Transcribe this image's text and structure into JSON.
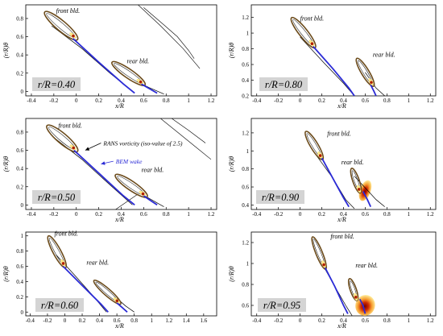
{
  "figure": {
    "labels": {
      "front": "front bld.",
      "rear": "rear bld.",
      "rans": "RANS vorticity (iso-value of 2.5)",
      "bem": "BEM wake"
    },
    "ylabel": "(r/R)θ",
    "xlabel": "x/R",
    "colors": {
      "bem_wake": "#2b2bd6",
      "rans_contour": "#000000",
      "blade_outline": "#6b4a1a",
      "vorticity_low": "#ffe98a",
      "vorticity_high": "#b01e00",
      "label_box": "#d4d4d4"
    }
  },
  "chart_data": [
    {
      "type": "contour",
      "panel": "r/R=0.40",
      "xlabel": "x/R",
      "ylabel": "(r/R)θ",
      "xlim": [
        -0.45,
        1.25
      ],
      "ylim": [
        -0.05,
        0.95
      ],
      "xticks": [
        "-0.4",
        "-0.2",
        "0",
        "0.2",
        "0.4",
        "0.6",
        "0.8",
        "1",
        "1.2"
      ],
      "yticks": [
        "0",
        "0.2",
        "0.4",
        "0.6",
        "0.8"
      ],
      "front": {
        "le": [
          -0.27,
          0.86
        ],
        "te": [
          0.0,
          0.58
        ],
        "w": 0.045
      },
      "rear": {
        "le": [
          0.33,
          0.31
        ],
        "te": [
          0.6,
          0.08
        ],
        "w": 0.04
      },
      "wakes": [
        [
          [
            -0.03,
            0.58
          ],
          [
            0.2,
            0.32
          ],
          [
            0.42,
            0.08
          ],
          [
            0.52,
            -0.02
          ]
        ],
        [
          [
            0.58,
            0.08
          ],
          [
            0.65,
            0.03
          ],
          [
            0.72,
            -0.02
          ]
        ]
      ],
      "rans": [
        [
          [
            -0.22,
            0.72
          ],
          [
            0.05,
            0.47
          ],
          [
            0.3,
            0.2
          ],
          [
            0.5,
            0.0
          ]
        ],
        [
          [
            0.55,
            0.1
          ],
          [
            0.65,
            0.04
          ],
          [
            0.78,
            -0.03
          ]
        ]
      ],
      "stray": [
        [
          [
            0.55,
            0.95
          ],
          [
            0.75,
            0.72
          ],
          [
            0.95,
            0.47
          ],
          [
            1.1,
            0.25
          ]
        ],
        [
          [
            0.6,
            0.92
          ],
          [
            0.78,
            0.73
          ],
          [
            0.9,
            0.6
          ],
          [
            1.0,
            0.45
          ],
          [
            1.05,
            0.36
          ]
        ]
      ],
      "text": [
        {
          "key": "front",
          "x": -0.18,
          "y": 0.86
        },
        {
          "key": "rear",
          "x": 0.45,
          "y": 0.31
        }
      ]
    },
    {
      "type": "contour",
      "panel": "r/R=0.80",
      "xlabel": "x/R",
      "ylabel": "(r/R)θ",
      "xlim": [
        -0.45,
        1.25
      ],
      "ylim": [
        0.2,
        1.36
      ],
      "xticks": [
        "-0.4",
        "-0.2",
        "0",
        "0.2",
        "0.4",
        "0.6",
        "0.8",
        "1",
        "1.2"
      ],
      "yticks": [
        "0.2",
        "0.4",
        "0.6",
        "0.8",
        "1",
        "1.2"
      ],
      "front": {
        "le": [
          -0.07,
          1.18
        ],
        "te": [
          0.13,
          0.83
        ],
        "w": 0.04
      },
      "rear": {
        "le": [
          0.53,
          0.66
        ],
        "te": [
          0.67,
          0.34
        ],
        "w": 0.035
      },
      "wakes": [
        [
          [
            0.12,
            0.83
          ],
          [
            0.3,
            0.55
          ],
          [
            0.45,
            0.3
          ],
          [
            0.5,
            0.2
          ]
        ],
        [
          [
            0.65,
            0.34
          ],
          [
            0.68,
            0.26
          ],
          [
            0.7,
            0.2
          ]
        ]
      ],
      "rans": [
        [
          [
            0.0,
            0.95
          ],
          [
            0.22,
            0.62
          ],
          [
            0.4,
            0.36
          ],
          [
            0.5,
            0.2
          ]
        ],
        [
          [
            0.6,
            0.5
          ],
          [
            0.7,
            0.3
          ],
          [
            0.78,
            0.2
          ]
        ]
      ],
      "stray": [],
      "text": [
        {
          "key": "front",
          "x": 0.0,
          "y": 1.16
        },
        {
          "key": "rear",
          "x": 0.67,
          "y": 0.7
        }
      ]
    },
    {
      "type": "contour",
      "panel": "r/R=0.50",
      "xlabel": "x/R",
      "ylabel": "(r/R)θ",
      "xlim": [
        -0.45,
        1.25
      ],
      "ylim": [
        -0.05,
        0.95
      ],
      "xticks": [
        "-0.4",
        "-0.2",
        "0",
        "0.2",
        "0.4",
        "0.6",
        "0.8",
        "1",
        "1.2"
      ],
      "yticks": [
        "0",
        "0.2",
        "0.4",
        "0.6",
        "0.8"
      ],
      "front": {
        "le": [
          -0.25,
          0.86
        ],
        "te": [
          0.0,
          0.6
        ],
        "w": 0.045
      },
      "rear": {
        "le": [
          0.36,
          0.32
        ],
        "te": [
          0.62,
          0.1
        ],
        "w": 0.04
      },
      "wakes": [
        [
          [
            -0.02,
            0.6
          ],
          [
            0.2,
            0.35
          ],
          [
            0.42,
            0.1
          ],
          [
            0.52,
            0.0
          ]
        ],
        [
          [
            0.6,
            0.1
          ],
          [
            0.66,
            0.05
          ],
          [
            0.72,
            0.0
          ]
        ]
      ],
      "rans": [
        [
          [
            -0.2,
            0.74
          ],
          [
            0.05,
            0.5
          ],
          [
            0.3,
            0.22
          ],
          [
            0.5,
            0.0
          ]
        ],
        [
          [
            0.58,
            0.12
          ],
          [
            0.68,
            0.05
          ],
          [
            0.78,
            -0.02
          ]
        ]
      ],
      "stray": [
        [
          [
            0.75,
            0.95
          ],
          [
            0.9,
            0.8
          ],
          [
            1.05,
            0.65
          ],
          [
            1.2,
            0.5
          ]
        ],
        [
          [
            0.85,
            0.95
          ],
          [
            1.0,
            0.82
          ],
          [
            1.15,
            0.68
          ]
        ],
        [
          [
            0.35,
            -0.05
          ],
          [
            0.55,
            0.12
          ]
        ]
      ],
      "arrows": [
        {
          "from": [
            0.22,
            0.68
          ],
          "to": [
            0.08,
            0.6
          ],
          "key": "rans",
          "color": "#000000"
        },
        {
          "from": [
            0.33,
            0.48
          ],
          "to": [
            0.22,
            0.45
          ],
          "key": "bem",
          "color": "#2b2bd6"
        }
      ],
      "text": [
        {
          "key": "front",
          "x": -0.16,
          "y": 0.85
        },
        {
          "key": "rear",
          "x": 0.58,
          "y": 0.36
        }
      ]
    },
    {
      "type": "contour",
      "panel": "r/R=0.90",
      "xlabel": "x/R",
      "ylabel": "(r/R)θ",
      "xlim": [
        -0.45,
        1.25
      ],
      "ylim": [
        0.35,
        1.36
      ],
      "xticks": [
        "-0.4",
        "-0.2",
        "0",
        "0.2",
        "0.4",
        "0.6",
        "0.8",
        "1",
        "1.2"
      ],
      "yticks": [
        "0.4",
        "0.6",
        "0.8",
        "1",
        "1.2"
      ],
      "front": {
        "le": [
          0.06,
          1.2
        ],
        "te": [
          0.2,
          0.92
        ],
        "w": 0.035
      },
      "rear": {
        "le": [
          0.48,
          0.79
        ],
        "te": [
          0.55,
          0.55
        ],
        "w": 0.03
      },
      "wakes": [
        [
          [
            0.2,
            0.92
          ],
          [
            0.3,
            0.7
          ],
          [
            0.4,
            0.48
          ],
          [
            0.45,
            0.38
          ]
        ],
        [
          [
            0.58,
            0.55
          ],
          [
            0.62,
            0.46
          ],
          [
            0.65,
            0.38
          ]
        ]
      ],
      "rans": [
        [
          [
            0.12,
            1.0
          ],
          [
            0.3,
            0.7
          ],
          [
            0.42,
            0.46
          ],
          [
            0.5,
            0.36
          ]
        ],
        [
          [
            0.5,
            0.72
          ],
          [
            0.7,
            0.46
          ],
          [
            0.78,
            0.38
          ]
        ]
      ],
      "stray": [],
      "hot": [
        {
          "x": 0.6,
          "y": 0.56,
          "rx": 0.05,
          "ry": 0.12
        }
      ],
      "text": [
        {
          "key": "front",
          "x": 0.25,
          "y": 1.17
        },
        {
          "key": "rear",
          "x": 0.38,
          "y": 0.85
        }
      ]
    },
    {
      "type": "contour",
      "panel": "r/R=0.60",
      "xlabel": "x/R",
      "ylabel": "(r/R)θ",
      "xlim": [
        -0.45,
        1.75
      ],
      "ylim": [
        -0.05,
        1.05
      ],
      "xticks": [
        "-0.4",
        "-0.2",
        "0",
        "0.2",
        "0.4",
        "0.6",
        "0.8",
        "1",
        "1.2",
        "1.4",
        "1.6"
      ],
      "yticks": [
        "0",
        "0.2",
        "0.4",
        "0.6",
        "0.8",
        "1"
      ],
      "front": {
        "le": [
          -0.18,
          0.98
        ],
        "te": [
          0.0,
          0.6
        ],
        "w": 0.045
      },
      "rear": {
        "le": [
          0.35,
          0.4
        ],
        "te": [
          0.63,
          0.12
        ],
        "w": 0.04
      },
      "wakes": [
        [
          [
            -0.02,
            0.6
          ],
          [
            0.2,
            0.35
          ],
          [
            0.42,
            0.1
          ],
          [
            0.5,
            0.0
          ]
        ],
        [
          [
            0.6,
            0.12
          ],
          [
            0.66,
            0.06
          ],
          [
            0.72,
            0.0
          ]
        ]
      ],
      "rans": [
        [
          [
            -0.1,
            0.75
          ],
          [
            0.1,
            0.5
          ],
          [
            0.32,
            0.22
          ],
          [
            0.48,
            0.0
          ]
        ],
        [
          [
            0.6,
            0.18
          ],
          [
            0.7,
            0.08
          ],
          [
            0.8,
            0.0
          ]
        ]
      ],
      "stray": [],
      "text": [
        {
          "key": "front",
          "x": -0.12,
          "y": 1.0
        },
        {
          "key": "rear",
          "x": 0.25,
          "y": 0.62
        }
      ]
    },
    {
      "type": "contour",
      "panel": "r/R=0.95",
      "xlabel": "x/R",
      "ylabel": "(r/R)θ",
      "xlim": [
        -0.45,
        1.25
      ],
      "ylim": [
        0.5,
        1.3
      ],
      "xticks": [
        "-0.4",
        "-0.2",
        "0",
        "0.2",
        "0.4",
        "0.6",
        "0.8",
        "1",
        "1.2"
      ],
      "yticks": [
        "0.6",
        "0.8",
        "1",
        "1.2"
      ],
      "front": {
        "le": [
          0.12,
          1.24
        ],
        "te": [
          0.23,
          0.96
        ],
        "w": 0.03
      },
      "rear": {
        "le": [
          0.46,
          0.84
        ],
        "te": [
          0.52,
          0.66
        ],
        "w": 0.028
      },
      "wakes": [
        [
          [
            0.23,
            0.96
          ],
          [
            0.32,
            0.78
          ],
          [
            0.4,
            0.6
          ],
          [
            0.44,
            0.52
          ]
        ],
        [
          [
            0.55,
            0.66
          ],
          [
            0.58,
            0.6
          ],
          [
            0.6,
            0.52
          ]
        ]
      ],
      "rans": [
        [
          [
            0.2,
            1.0
          ],
          [
            0.32,
            0.78
          ],
          [
            0.42,
            0.6
          ],
          [
            0.48,
            0.5
          ]
        ]
      ],
      "stray": [],
      "hot": [
        {
          "x": 0.6,
          "y": 0.6,
          "rx": 0.09,
          "ry": 0.1
        }
      ],
      "text": [
        {
          "key": "front",
          "x": 0.28,
          "y": 1.24
        },
        {
          "key": "rear",
          "x": 0.51,
          "y": 0.96
        }
      ]
    }
  ]
}
